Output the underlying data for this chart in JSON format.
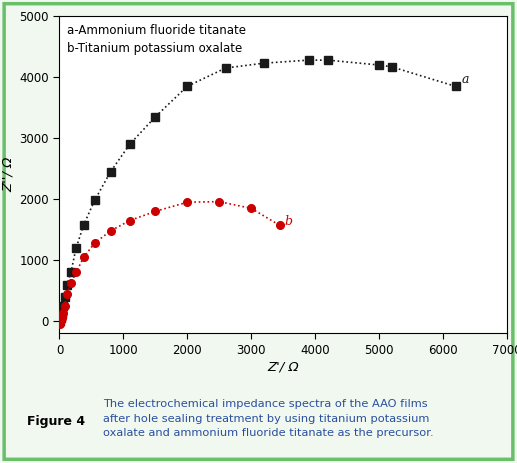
{
  "series_a_x": [
    10,
    20,
    35,
    55,
    80,
    120,
    180,
    260,
    380,
    550,
    800,
    1100,
    1500,
    2000,
    2600,
    3200,
    3900,
    4200,
    5000,
    5200,
    6200
  ],
  "series_a_y": [
    10,
    50,
    120,
    250,
    400,
    600,
    800,
    1200,
    1580,
    1980,
    2450,
    2900,
    3350,
    3850,
    4150,
    4230,
    4280,
    4280,
    4200,
    4170,
    3850
  ],
  "series_b_x": [
    5,
    10,
    20,
    35,
    55,
    80,
    120,
    180,
    260,
    380,
    550,
    800,
    1100,
    1500,
    2000,
    2500,
    3000,
    3450
  ],
  "series_b_y": [
    -50,
    0,
    20,
    60,
    130,
    250,
    450,
    620,
    800,
    1050,
    1280,
    1480,
    1650,
    1800,
    1950,
    1960,
    1850,
    1570
  ],
  "series_a_color": "#1a1a1a",
  "series_b_color": "#cc0000",
  "series_a_label": "a-Ammonium fluoride titanate",
  "series_b_label": "b-Titanium potassium oxalate",
  "label_a": "a",
  "label_b": "b",
  "xlabel": "Z'/ Ω",
  "ylabel": "Z''/ Ω",
  "xlim": [
    0,
    7000
  ],
  "ylim": [
    -200,
    5000
  ],
  "xticks": [
    0,
    1000,
    2000,
    3000,
    4000,
    5000,
    6000,
    7000
  ],
  "yticks": [
    0,
    1000,
    2000,
    3000,
    4000,
    5000
  ],
  "plot_bg": "#ffffff",
  "outer_bg": "#f0f8f0",
  "border_color": "#6abf6a",
  "fig_caption": "The electrochemical impedance spectra of the AAO films after hole sealing treatment by using titanium potassium oxalate and ammonium fluoride titanate as the precursor.",
  "fig_label": "Figure 4",
  "label_bg": "#c8dfc8",
  "caption_color": "#2b4fa0"
}
